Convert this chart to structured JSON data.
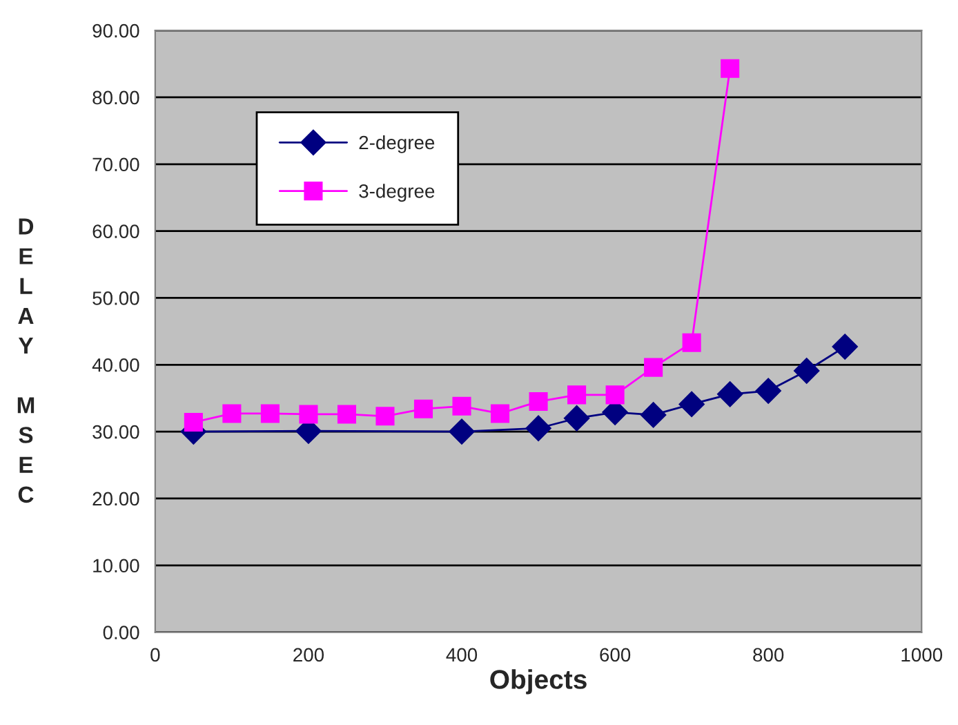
{
  "chart_data": {
    "type": "line",
    "xlabel": "Objects",
    "ylabel": "DELAY MSEC",
    "xlim": [
      0,
      1000
    ],
    "xticks": [
      0,
      200,
      400,
      600,
      800,
      1000
    ],
    "ylim": [
      0,
      90
    ],
    "yticks": [
      {
        "value": 0,
        "label": "0.00"
      },
      {
        "value": 10,
        "label": "10.00"
      },
      {
        "value": 20,
        "label": "20.00"
      },
      {
        "value": 30,
        "label": "30.00"
      },
      {
        "value": 40,
        "label": "40.00"
      },
      {
        "value": 50,
        "label": "50.00"
      },
      {
        "value": 60,
        "label": "60.00"
      },
      {
        "value": 70,
        "label": "70.00"
      },
      {
        "value": 80,
        "label": "80.00"
      },
      {
        "value": 90,
        "label": "90.00"
      }
    ],
    "grid": "y",
    "legend": "top left",
    "series": [
      {
        "name": "2-degree",
        "color": "#000080",
        "marker": "diamond",
        "x": [
          50,
          200,
          400,
          500,
          550,
          600,
          650,
          700,
          750,
          800,
          850,
          900
        ],
        "values": [
          30.0,
          30.1,
          30.0,
          30.5,
          32.0,
          32.9,
          32.5,
          34.1,
          35.6,
          36.1,
          39.1,
          42.7
        ]
      },
      {
        "name": "3-degree",
        "color": "#ff00ff",
        "marker": "square",
        "x": [
          50,
          100,
          150,
          200,
          250,
          300,
          350,
          400,
          450,
          500,
          550,
          600,
          650,
          700,
          750
        ],
        "values": [
          31.4,
          32.7,
          32.7,
          32.6,
          32.6,
          32.3,
          33.4,
          33.8,
          32.7,
          34.5,
          35.5,
          35.5,
          39.6,
          43.3,
          84.3
        ]
      }
    ]
  }
}
